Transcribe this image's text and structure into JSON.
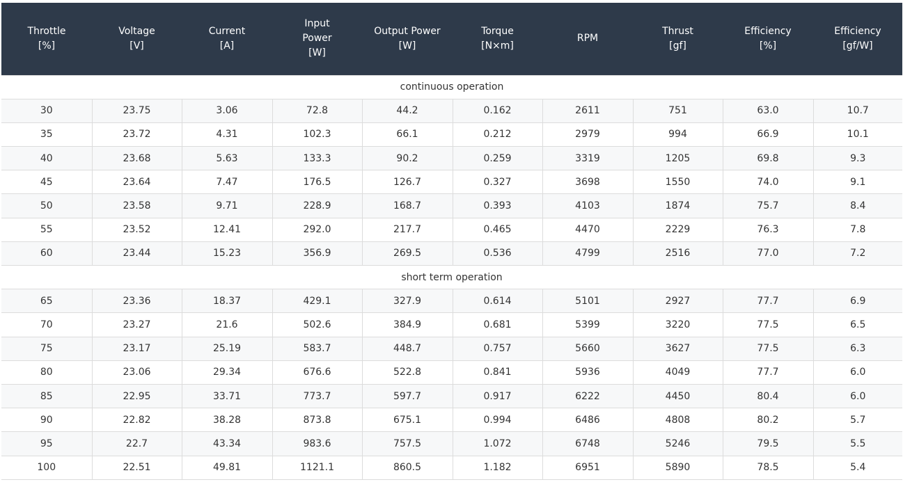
{
  "columns": [
    [
      "Throttle",
      "[%]"
    ],
    [
      "Voltage",
      "[V]"
    ],
    [
      "Current",
      "[A]"
    ],
    [
      "Input",
      "Power",
      "[W]"
    ],
    [
      "Output Power",
      "[W]"
    ],
    [
      "Torque",
      "[N×m]"
    ],
    [
      "RPM"
    ],
    [
      "Thrust",
      "[gf]"
    ],
    [
      "Efficiency",
      "[%]"
    ],
    [
      "Efficiency",
      "[gf/W]"
    ]
  ],
  "sections": [
    {
      "title": "continuous operation",
      "rows": [
        [
          "30",
          "23.75",
          "3.06",
          "72.8",
          "44.2",
          "0.162",
          "2611",
          "751",
          "63.0",
          "10.7"
        ],
        [
          "35",
          "23.72",
          "4.31",
          "102.3",
          "66.1",
          "0.212",
          "2979",
          "994",
          "66.9",
          "10.1"
        ],
        [
          "40",
          "23.68",
          "5.63",
          "133.3",
          "90.2",
          "0.259",
          "3319",
          "1205",
          "69.8",
          "9.3"
        ],
        [
          "45",
          "23.64",
          "7.47",
          "176.5",
          "126.7",
          "0.327",
          "3698",
          "1550",
          "74.0",
          "9.1"
        ],
        [
          "50",
          "23.58",
          "9.71",
          "228.9",
          "168.7",
          "0.393",
          "4103",
          "1874",
          "75.7",
          "8.4"
        ],
        [
          "55",
          "23.52",
          "12.41",
          "292.0",
          "217.7",
          "0.465",
          "4470",
          "2229",
          "76.3",
          "7.8"
        ],
        [
          "60",
          "23.44",
          "15.23",
          "356.9",
          "269.5",
          "0.536",
          "4799",
          "2516",
          "77.0",
          "7.2"
        ]
      ]
    },
    {
      "title": "short term operation",
      "rows": [
        [
          "65",
          "23.36",
          "18.37",
          "429.1",
          "327.9",
          "0.614",
          "5101",
          "2927",
          "77.7",
          "6.9"
        ],
        [
          "70",
          "23.27",
          "21.6",
          "502.6",
          "384.9",
          "0.681",
          "5399",
          "3220",
          "77.5",
          "6.5"
        ],
        [
          "75",
          "23.17",
          "25.19",
          "583.7",
          "448.7",
          "0.757",
          "5660",
          "3627",
          "77.5",
          "6.3"
        ],
        [
          "80",
          "23.06",
          "29.34",
          "676.6",
          "522.8",
          "0.841",
          "5936",
          "4049",
          "77.7",
          "6.0"
        ],
        [
          "85",
          "22.95",
          "33.71",
          "773.7",
          "597.7",
          "0.917",
          "6222",
          "4450",
          "80.4",
          "6.0"
        ],
        [
          "90",
          "22.82",
          "38.28",
          "873.8",
          "675.1",
          "0.994",
          "6486",
          "4808",
          "80.2",
          "5.7"
        ],
        [
          "95",
          "22.7",
          "43.34",
          "983.6",
          "757.5",
          "1.072",
          "6748",
          "5246",
          "79.5",
          "5.5"
        ],
        [
          "100",
          "22.51",
          "49.81",
          "1121.1",
          "860.5",
          "1.182",
          "6951",
          "5890",
          "78.5",
          "5.4"
        ]
      ]
    }
  ],
  "colors": {
    "header_bg": "#2e3a4a",
    "header_text": "#ffffff",
    "grid": "#dcdcdc",
    "stripe": "#f7f8f9"
  }
}
